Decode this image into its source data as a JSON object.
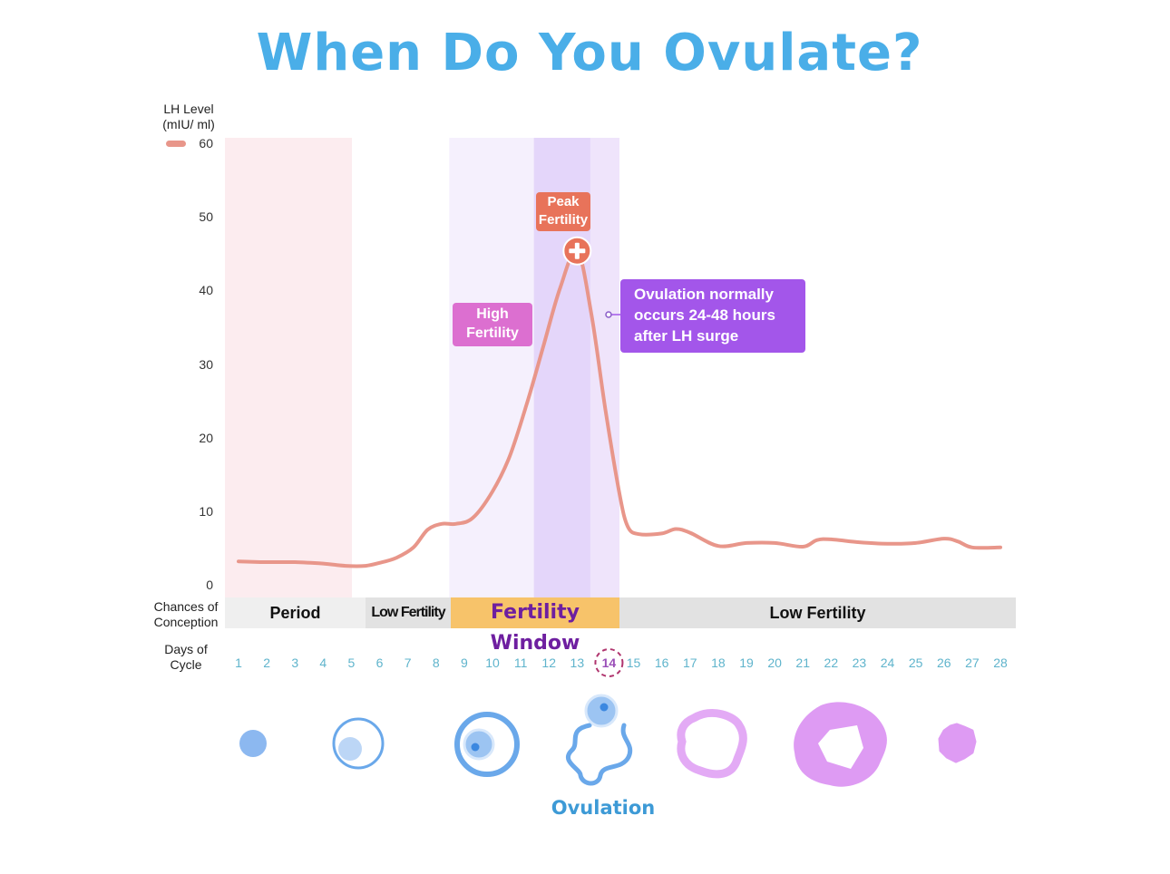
{
  "title": "When Do You Ovulate?",
  "colors": {
    "title": "#4aaee8",
    "curve": "#e8968a",
    "period_band": "#fcecef",
    "fertile_band": "#f5f0fd",
    "peak_band": "#e4d6fa",
    "post_peak_band": "#efe4fb",
    "peak_callout": "#e8735a",
    "high_callout": "#dc6fd0",
    "ovulation_callout": "#a356ea",
    "fertility_window": "#f7c36a",
    "fertility_window_text": "#6e1fa0",
    "low_bar": "#e2e2e2",
    "day_number": "#5fb4cc",
    "highlight_day": "#b0356e"
  },
  "y_axis": {
    "label_line1": "LH Level",
    "label_line2": "(mIU/ ml)"
  },
  "row_labels": {
    "chances_line1": "Chances of",
    "chances_line2": "Conception",
    "days_line1": "Days of",
    "days_line2": "Cycle"
  },
  "conception_bands": [
    {
      "label": "Period",
      "from_day": 1,
      "to_day": 5
    },
    {
      "label": "Low Fertility",
      "from_day": 6,
      "to_day": 8
    },
    {
      "label": "Fertility Window",
      "from_day": 9,
      "to_day": 14
    },
    {
      "label": "Low Fertility",
      "from_day": 15,
      "to_day": 28
    }
  ],
  "callouts": {
    "peak": {
      "line1": "Peak",
      "line2": "Fertility"
    },
    "high": {
      "line1": "High",
      "line2": "Fertility"
    },
    "ovulation": {
      "line1": "Ovulation normally",
      "line2": "occurs 24-48 hours",
      "line3": "after LH surge"
    }
  },
  "ovulation_label": "Ovulation",
  "highlighted_day": 14,
  "follicle_stages": [
    "small-follicle",
    "growing-follicle",
    "mature-follicle",
    "ovulating-follicle",
    "corpus-luteum-early",
    "corpus-luteum-mature",
    "corpus-albicans"
  ],
  "chart_data": {
    "type": "line",
    "title": "When Do You Ovulate?",
    "xlabel": "Days of Cycle",
    "ylabel": "LH Level (mIU/ ml)",
    "ylim": [
      0,
      60
    ],
    "xlim": [
      1,
      28
    ],
    "y_ticks": [
      0,
      10,
      20,
      30,
      40,
      50,
      60
    ],
    "x_ticks": [
      1,
      2,
      3,
      4,
      5,
      6,
      7,
      8,
      9,
      10,
      11,
      12,
      13,
      14,
      15,
      16,
      17,
      18,
      19,
      20,
      21,
      22,
      23,
      24,
      25,
      26,
      27,
      28
    ],
    "grid": false,
    "legend": {
      "entries": [
        "LH Level"
      ],
      "position": "top-left"
    },
    "series": [
      {
        "name": "LH Level",
        "x": [
          1,
          2,
          3,
          4,
          4.8,
          5.5,
          6,
          6.6,
          7.2,
          7.7,
          8.2,
          8.7,
          9.3,
          10,
          10.6,
          11.2,
          11.8,
          12.4,
          13,
          13.5,
          14,
          14.5,
          14.8,
          15.2,
          16,
          16.5,
          17,
          18,
          19,
          20,
          21,
          21.5,
          22,
          23,
          24,
          25,
          26,
          26.5,
          27,
          28
        ],
        "y": [
          3.3,
          3.2,
          3.2,
          3.0,
          2.7,
          2.7,
          3.1,
          3.8,
          5.2,
          7.6,
          8.4,
          8.4,
          9.2,
          12.8,
          17.5,
          24.5,
          32.5,
          40.5,
          45.5,
          37.0,
          24.0,
          12.5,
          8.0,
          7.0,
          7.1,
          7.7,
          7.2,
          5.4,
          5.8,
          5.8,
          5.3,
          6.2,
          6.3,
          5.9,
          5.7,
          5.8,
          6.4,
          6.0,
          5.2,
          5.2
        ]
      }
    ],
    "bands": [
      {
        "name": "Period",
        "from_day": 1,
        "to_day": 5
      },
      {
        "name": "High Fertility",
        "from_day": 9,
        "to_day": 11
      },
      {
        "name": "Peak Fertility",
        "from_day": 12,
        "to_day": 13
      },
      {
        "name": "Post-peak",
        "from_day": 14,
        "to_day": 14
      }
    ],
    "annotations": [
      {
        "text": "Peak Fertility",
        "day": 13
      },
      {
        "text": "High Fertility",
        "day": 10
      },
      {
        "text": "Ovulation normally occurs 24-48 hours after LH surge",
        "day": 14
      }
    ]
  }
}
